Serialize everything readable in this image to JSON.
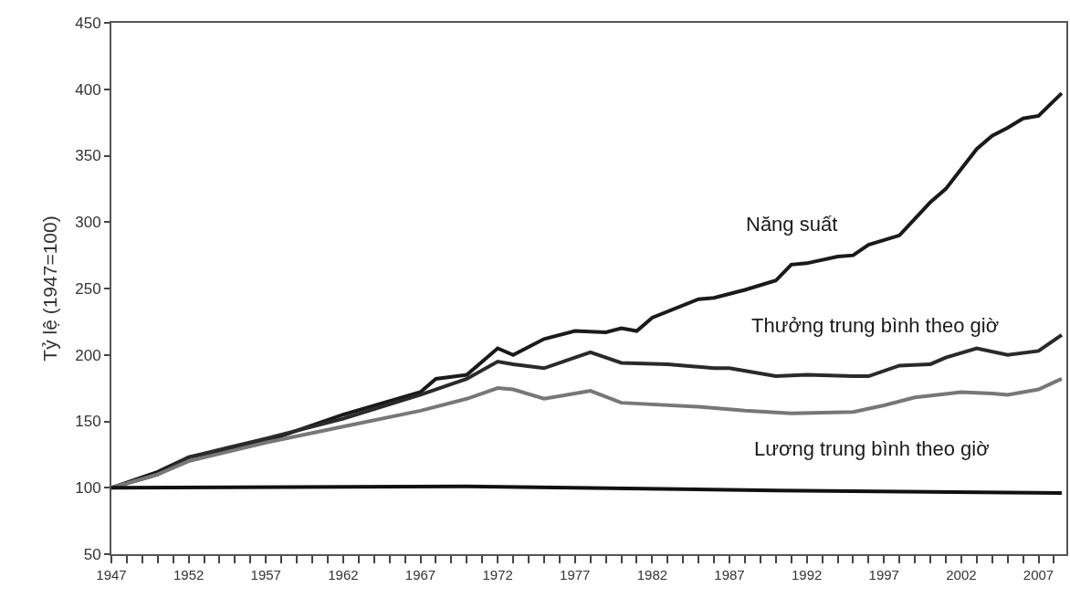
{
  "chart_data": {
    "type": "line",
    "ylabel": "Tỷ lệ (1947=100)",
    "xlim": [
      1947,
      2008.8
    ],
    "ylim": [
      50,
      450
    ],
    "yticks": [
      50,
      100,
      150,
      200,
      250,
      300,
      350,
      400,
      450
    ],
    "xticks": [
      1947,
      {
        "value": 1948,
        "label": null
      },
      {
        "value": 1949,
        "label": null
      },
      {
        "value": 1950,
        "label": null
      },
      {
        "value": 1951,
        "label": null
      },
      1952,
      {
        "value": 1953,
        "label": null
      },
      {
        "value": 1954,
        "label": null
      },
      {
        "value": 1955,
        "label": null
      },
      {
        "value": 1956,
        "label": null
      },
      1957,
      {
        "value": 1958,
        "label": null
      },
      {
        "value": 1959,
        "label": null
      },
      {
        "value": 1960,
        "label": null
      },
      {
        "value": 1961,
        "label": null
      },
      1962,
      {
        "value": 1963,
        "label": null
      },
      {
        "value": 1964,
        "label": null
      },
      {
        "value": 1965,
        "label": null
      },
      {
        "value": 1966,
        "label": null
      },
      1967,
      {
        "value": 1968,
        "label": null
      },
      {
        "value": 1969,
        "label": null
      },
      {
        "value": 1970,
        "label": null
      },
      {
        "value": 1971,
        "label": null
      },
      1972,
      {
        "value": 1973,
        "label": null
      },
      {
        "value": 1974,
        "label": null
      },
      {
        "value": 1975,
        "label": null
      },
      {
        "value": 1976,
        "label": null
      },
      1977,
      {
        "value": 1978,
        "label": null
      },
      {
        "value": 1979,
        "label": null
      },
      {
        "value": 1980,
        "label": null
      },
      {
        "value": 1981,
        "label": null
      },
      1982,
      {
        "value": 1983,
        "label": null
      },
      {
        "value": 1984,
        "label": null
      },
      {
        "value": 1985,
        "label": null
      },
      {
        "value": 1986,
        "label": null
      },
      1987,
      {
        "value": 1988,
        "label": null
      },
      {
        "value": 1989,
        "label": null
      },
      {
        "value": 1990,
        "label": null
      },
      {
        "value": 1991,
        "label": null
      },
      1992,
      {
        "value": 1993,
        "label": null
      },
      {
        "value": 1994,
        "label": null
      },
      {
        "value": 1995,
        "label": null
      },
      {
        "value": 1996,
        "label": null
      },
      1997,
      {
        "value": 1998,
        "label": null
      },
      {
        "value": 1999,
        "label": null
      },
      {
        "value": 2000,
        "label": null
      },
      {
        "value": 2001,
        "label": null
      },
      2002,
      {
        "value": 2003,
        "label": null
      },
      {
        "value": 2004,
        "label": null
      },
      {
        "value": 2005,
        "label": null
      },
      {
        "value": 2006,
        "label": null
      },
      2007,
      {
        "value": 2008,
        "label": null
      }
    ],
    "grid": false,
    "legend": false,
    "marker": "none",
    "line_style": "solid",
    "series": [
      {
        "name": "Năng suất",
        "color": "#1a1a1a",
        "x": [
          1947,
          1950,
          1952,
          1957,
          1962,
          1967,
          1968,
          1970,
          1972,
          1973,
          1975,
          1977,
          1979,
          1980,
          1981,
          1982,
          1985,
          1986,
          1988,
          1990,
          1991,
          1992,
          1994,
          1995,
          1996,
          1998,
          2000,
          2001,
          2002,
          2003,
          2004,
          2005,
          2006,
          2007,
          2008.5
        ],
        "values": [
          100,
          112,
          123,
          135,
          155,
          172,
          182,
          185,
          205,
          200,
          212,
          218,
          217,
          220,
          218,
          228,
          242,
          243,
          249,
          256,
          268,
          269,
          274,
          275,
          283,
          290,
          315,
          325,
          340,
          355,
          365,
          371,
          378,
          380,
          397
        ]
      },
      {
        "name": "Thưởng trung bình theo giờ",
        "color": "#2a2a2a",
        "x": [
          1947,
          1950,
          1952,
          1957,
          1962,
          1967,
          1970,
          1972,
          1973,
          1975,
          1977,
          1978,
          1979,
          1980,
          1983,
          1986,
          1987,
          1990,
          1992,
          1995,
          1996,
          1998,
          2000,
          2001,
          2003,
          2005,
          2007,
          2008.5
        ],
        "values": [
          100,
          110,
          123,
          137,
          152,
          170,
          182,
          195,
          193,
          190,
          198,
          202,
          198,
          194,
          193,
          190,
          190,
          184,
          185,
          184,
          184,
          192,
          193,
          198,
          205,
          200,
          203,
          215
        ]
      },
      {
        "name": "Lương trung bình theo giờ",
        "color": "#777777",
        "x": [
          1947,
          1950,
          1952,
          1957,
          1962,
          1967,
          1970,
          1972,
          1973,
          1975,
          1977,
          1978,
          1980,
          1985,
          1988,
          1991,
          1995,
          1997,
          1999,
          2002,
          2004,
          2005,
          2007,
          2008.5
        ],
        "values": [
          100,
          110,
          120,
          134,
          146,
          158,
          167,
          175,
          174,
          167,
          171,
          173,
          164,
          161,
          158,
          156,
          157,
          162,
          168,
          172,
          171,
          170,
          174,
          182
        ]
      },
      {
        "color": "#111111",
        "x": [
          1947,
          1970,
          1990,
          2008.5
        ],
        "values": [
          100,
          101,
          98,
          96
        ]
      }
    ]
  }
}
